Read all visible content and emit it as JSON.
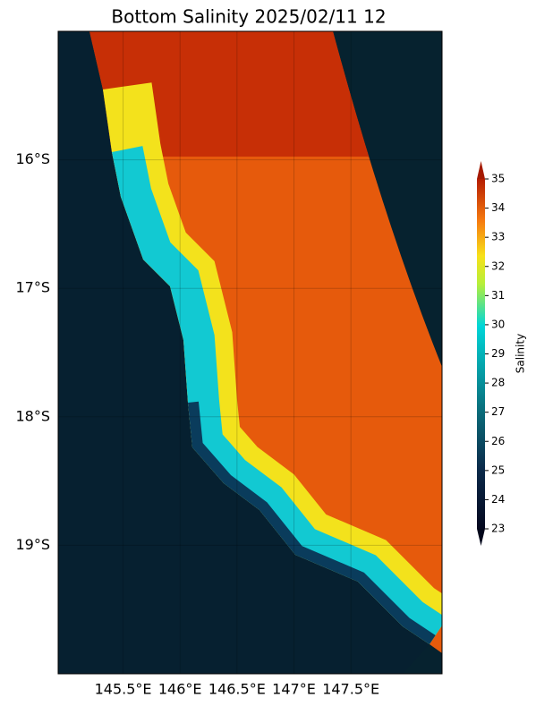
{
  "map": {
    "title": "Bottom Salinity 2025/02/11 12",
    "lat_range": [
      -20,
      -15
    ],
    "lon_range": [
      144.93,
      148.3
    ],
    "lat_ticks": [
      {
        "value": -16,
        "label": "16°S"
      },
      {
        "value": -17,
        "label": "17°S"
      },
      {
        "value": -18,
        "label": "18°S"
      },
      {
        "value": -19,
        "label": "19°S"
      }
    ],
    "lon_ticks": [
      {
        "value": 145.5,
        "label": "145.5°E"
      },
      {
        "value": 146,
        "label": "146°E"
      },
      {
        "value": 146.5,
        "label": "146.5°E"
      },
      {
        "value": 147,
        "label": "147°E"
      },
      {
        "value": 147.5,
        "label": "147.5°E"
      }
    ],
    "colorbar": {
      "label": "Salinity",
      "range": [
        23,
        35
      ],
      "ticks": [
        23,
        24,
        25,
        26,
        27,
        28,
        29,
        30,
        31,
        32,
        33,
        34,
        35
      ]
    }
  }
}
